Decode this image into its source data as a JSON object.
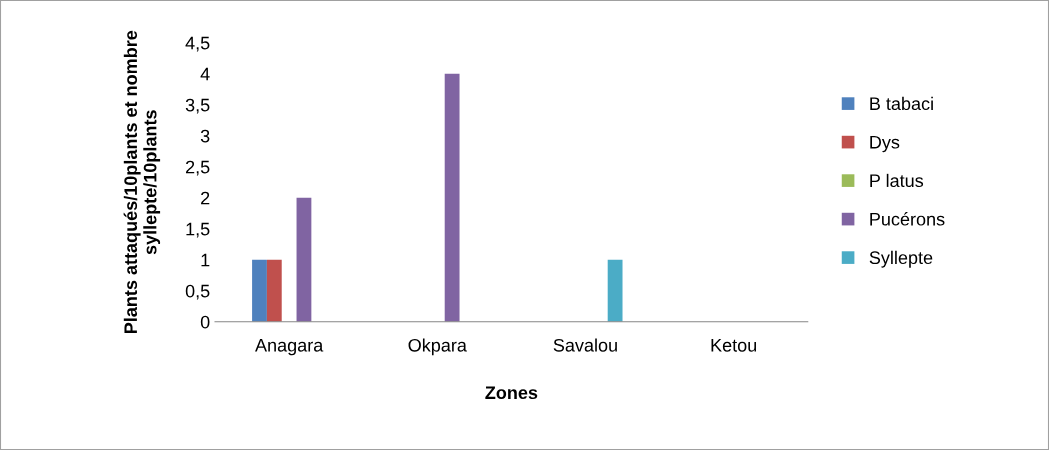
{
  "chart_data": {
    "type": "bar",
    "xlabel": "Zones",
    "ylabel": "Plants attaqués/10plants et nombre syllepte/10plants",
    "categories": [
      "Anagara",
      "Okpara",
      "Savalou",
      "Ketou"
    ],
    "series": [
      {
        "name": "B tabaci",
        "color": "#4f81bd",
        "values": [
          1,
          0,
          0,
          0
        ]
      },
      {
        "name": "Dys",
        "color": "#c0504d",
        "values": [
          1,
          0,
          0,
          0
        ]
      },
      {
        "name": "P latus",
        "color": "#9bbb59",
        "values": [
          0,
          0,
          0,
          0
        ]
      },
      {
        "name": "Pucérons",
        "color": "#8064a2",
        "values": [
          2,
          4,
          0,
          0
        ]
      },
      {
        "name": "Syllepte",
        "color": "#4bacc6",
        "values": [
          0,
          0,
          1,
          0
        ]
      }
    ],
    "ylim": [
      0,
      4.5
    ],
    "yticks": [
      0,
      {
        "value": 0.5,
        "label": "0,5"
      },
      1,
      {
        "value": 1.5,
        "label": "1,5"
      },
      2,
      {
        "value": 2.5,
        "label": "2,5"
      },
      3,
      {
        "value": 3.5,
        "label": "3,5"
      },
      4,
      {
        "value": 4.5,
        "label": "4,5"
      }
    ],
    "grid": false,
    "legend": "right"
  }
}
